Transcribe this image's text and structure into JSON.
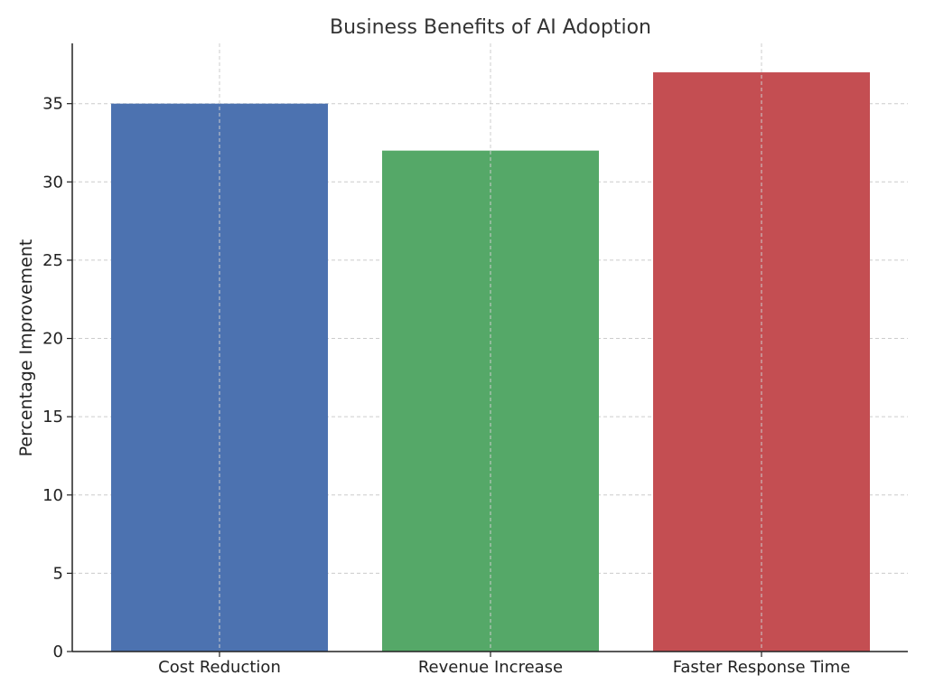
{
  "chart_data": {
    "type": "bar",
    "title": "Business Benefits of AI Adoption",
    "xlabel": "",
    "ylabel": "Percentage Improvement",
    "categories": [
      "Cost Reduction",
      "Revenue Increase",
      "Faster Response Time"
    ],
    "values": [
      35,
      32,
      37
    ],
    "colors": [
      "#4c72b0",
      "#55a868",
      "#c44e52"
    ],
    "ylim": [
      0,
      38.85
    ],
    "yticks": [
      0,
      5,
      10,
      15,
      20,
      25,
      30,
      35
    ],
    "grid": true
  }
}
